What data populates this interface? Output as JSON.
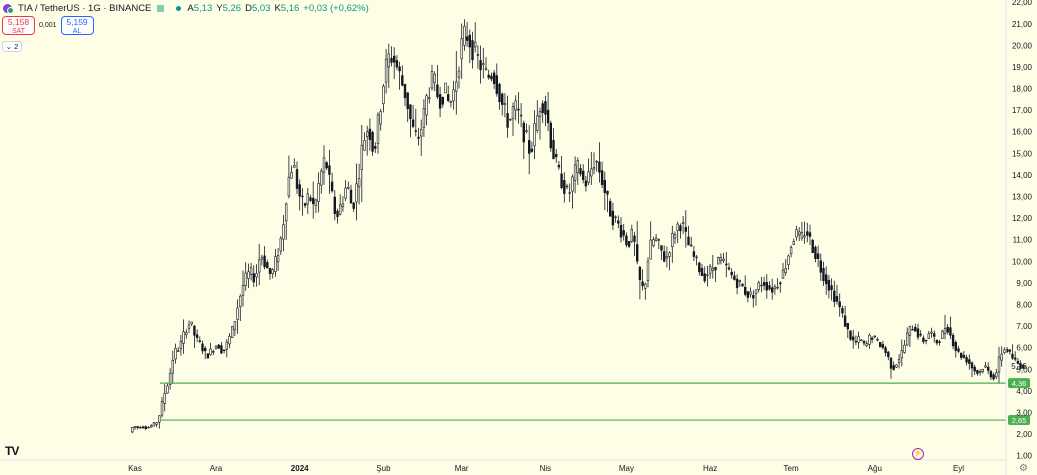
{
  "header": {
    "symbol": "TIA / TetherUS · 1G · BINANCE",
    "ohlc": {
      "open_label": "A",
      "open": "5,13",
      "high_label": "Y",
      "high": "5,26",
      "low_label": "D",
      "low": "5,03",
      "close_label": "K",
      "close": "5,16",
      "change": "+0,03 (+0,62%)"
    },
    "sell": {
      "price": "5,158",
      "label": "SAT"
    },
    "buy": {
      "price": "5,159",
      "label": "AL"
    },
    "spread": "0,001",
    "indicator_count": "2",
    "logo": "TV"
  },
  "colors": {
    "up": "#089981",
    "down": "#131722",
    "line": "#4caf50",
    "background": "#fefee6"
  },
  "chart_data": {
    "type": "candlestick",
    "title": "TIA / TetherUS · 1G · BINANCE",
    "x_ticks": [
      "Kas",
      "Ara",
      "2024",
      "Şub",
      "Mar",
      "Nis",
      "May",
      "Haz",
      "Tem",
      "Ağu",
      "Eyl"
    ],
    "y_ticks": [
      "22,00",
      "21,00",
      "20,00",
      "19,00",
      "18,00",
      "17,00",
      "16,00",
      "15,00",
      "14,00",
      "13,00",
      "12,00",
      "11,00",
      "10,00",
      "9,00",
      "8,00",
      "7,00",
      "6,00",
      "5,00",
      "4,00",
      "3,00",
      "2,00",
      "1,00"
    ],
    "ylim": [
      0.8,
      22.1
    ],
    "price_scale": "linear",
    "current_price": 5.16,
    "current_price_label": "5,16",
    "horizontal_levels": [
      {
        "value": 4.36,
        "label": "4,36"
      },
      {
        "value": 2.65,
        "label": "2,65"
      }
    ],
    "price_path": [
      [
        "2023-10-31",
        2.2
      ],
      [
        "2023-11-01",
        2.4
      ],
      [
        "2023-11-02",
        2.3
      ],
      [
        "2023-11-04",
        2.35
      ],
      [
        "2023-11-06",
        2.3
      ],
      [
        "2023-11-08",
        2.4
      ],
      [
        "2023-11-10",
        2.6
      ],
      [
        "2023-11-12",
        3.7
      ],
      [
        "2023-11-14",
        4.5
      ],
      [
        "2023-11-16",
        5.8
      ],
      [
        "2023-11-18",
        6.0
      ],
      [
        "2023-11-20",
        6.8
      ],
      [
        "2023-11-22",
        7.2
      ],
      [
        "2023-11-24",
        6.4
      ],
      [
        "2023-11-26",
        6.1
      ],
      [
        "2023-11-28",
        5.6
      ],
      [
        "2023-11-30",
        5.9
      ],
      [
        "2023-12-02",
        6.2
      ],
      [
        "2023-12-04",
        5.8
      ],
      [
        "2023-12-06",
        6.3
      ],
      [
        "2023-12-08",
        7.0
      ],
      [
        "2023-12-10",
        8.2
      ],
      [
        "2023-12-12",
        9.1
      ],
      [
        "2023-12-14",
        9.5
      ],
      [
        "2023-12-16",
        9.2
      ],
      [
        "2023-12-18",
        10.4
      ],
      [
        "2023-12-20",
        9.8
      ],
      [
        "2023-12-22",
        9.3
      ],
      [
        "2023-12-24",
        10.2
      ],
      [
        "2023-12-26",
        11.3
      ],
      [
        "2023-12-28",
        13.6
      ],
      [
        "2023-12-30",
        14.6
      ],
      [
        "2024-01-01",
        13.2
      ],
      [
        "2024-01-03",
        12.5
      ],
      [
        "2024-01-05",
        13.1
      ],
      [
        "2024-01-07",
        12.4
      ],
      [
        "2024-01-09",
        13.9
      ],
      [
        "2024-01-11",
        14.8
      ],
      [
        "2024-01-13",
        13.3
      ],
      [
        "2024-01-15",
        12.0
      ],
      [
        "2024-01-17",
        12.7
      ],
      [
        "2024-01-19",
        13.6
      ],
      [
        "2024-01-21",
        12.4
      ],
      [
        "2024-01-23",
        13.8
      ],
      [
        "2024-01-25",
        15.6
      ],
      [
        "2024-01-27",
        16.3
      ],
      [
        "2024-01-29",
        15.0
      ],
      [
        "2024-01-31",
        16.8
      ],
      [
        "2024-02-02",
        18.8
      ],
      [
        "2024-02-04",
        19.6
      ],
      [
        "2024-02-06",
        19.2
      ],
      [
        "2024-02-08",
        18.4
      ],
      [
        "2024-02-10",
        17.6
      ],
      [
        "2024-02-12",
        16.2
      ],
      [
        "2024-02-14",
        15.6
      ],
      [
        "2024-02-16",
        16.4
      ],
      [
        "2024-02-18",
        17.9
      ],
      [
        "2024-02-20",
        18.4
      ],
      [
        "2024-02-22",
        17.5
      ],
      [
        "2024-02-24",
        17.9
      ],
      [
        "2024-02-26",
        17.2
      ],
      [
        "2024-02-28",
        18.1
      ],
      [
        "2024-03-01",
        19.8
      ],
      [
        "2024-03-03",
        20.6
      ],
      [
        "2024-03-05",
        20.1
      ],
      [
        "2024-03-07",
        19.4
      ],
      [
        "2024-03-09",
        19.0
      ],
      [
        "2024-03-11",
        18.5
      ],
      [
        "2024-03-13",
        18.8
      ],
      [
        "2024-03-15",
        18.0
      ],
      [
        "2024-03-17",
        17.0
      ],
      [
        "2024-03-19",
        16.4
      ],
      [
        "2024-03-21",
        17.2
      ],
      [
        "2024-03-23",
        16.6
      ],
      [
        "2024-03-25",
        15.8
      ],
      [
        "2024-03-27",
        15.0
      ],
      [
        "2024-03-29",
        16.4
      ],
      [
        "2024-03-31",
        17.6
      ],
      [
        "2024-04-02",
        16.8
      ],
      [
        "2024-04-04",
        15.2
      ],
      [
        "2024-04-06",
        14.2
      ],
      [
        "2024-04-08",
        13.6
      ],
      [
        "2024-04-10",
        13.0
      ],
      [
        "2024-04-12",
        14.0
      ],
      [
        "2024-04-14",
        14.4
      ],
      [
        "2024-04-16",
        13.5
      ],
      [
        "2024-04-18",
        14.1
      ],
      [
        "2024-04-20",
        14.8
      ],
      [
        "2024-04-22",
        14.0
      ],
      [
        "2024-04-24",
        13.0
      ],
      [
        "2024-04-26",
        12.1
      ],
      [
        "2024-04-28",
        11.8
      ],
      [
        "2024-04-30",
        11.3
      ],
      [
        "2024-05-02",
        10.8
      ],
      [
        "2024-05-04",
        11.3
      ],
      [
        "2024-05-06",
        9.2
      ],
      [
        "2024-05-08",
        8.6
      ],
      [
        "2024-05-10",
        10.6
      ],
      [
        "2024-05-12",
        11.1
      ],
      [
        "2024-05-14",
        10.6
      ],
      [
        "2024-05-16",
        10.0
      ],
      [
        "2024-05-18",
        10.9
      ],
      [
        "2024-05-20",
        11.6
      ],
      [
        "2024-05-22",
        11.8
      ],
      [
        "2024-05-24",
        10.9
      ],
      [
        "2024-05-26",
        10.3
      ],
      [
        "2024-05-28",
        9.8
      ],
      [
        "2024-05-30",
        9.3
      ],
      [
        "2024-06-01",
        9.5
      ],
      [
        "2024-06-03",
        9.8
      ],
      [
        "2024-06-05",
        10.1
      ],
      [
        "2024-06-07",
        9.8
      ],
      [
        "2024-06-09",
        9.4
      ],
      [
        "2024-06-11",
        9.1
      ],
      [
        "2024-06-13",
        8.9
      ],
      [
        "2024-06-15",
        8.5
      ],
      [
        "2024-06-17",
        8.4
      ],
      [
        "2024-06-19",
        8.8
      ],
      [
        "2024-06-21",
        9.1
      ],
      [
        "2024-06-23",
        8.8
      ],
      [
        "2024-06-25",
        8.7
      ],
      [
        "2024-06-27",
        9.1
      ],
      [
        "2024-06-29",
        9.6
      ],
      [
        "2024-07-01",
        10.6
      ],
      [
        "2024-07-03",
        11.3
      ],
      [
        "2024-07-05",
        11.0
      ],
      [
        "2024-07-07",
        11.5
      ],
      [
        "2024-07-09",
        10.8
      ],
      [
        "2024-07-11",
        10.2
      ],
      [
        "2024-07-13",
        9.5
      ],
      [
        "2024-07-15",
        9.0
      ],
      [
        "2024-07-17",
        8.5
      ],
      [
        "2024-07-19",
        8.0
      ],
      [
        "2024-07-21",
        7.3
      ],
      [
        "2024-07-23",
        6.6
      ],
      [
        "2024-07-25",
        6.2
      ],
      [
        "2024-07-27",
        6.4
      ],
      [
        "2024-07-29",
        6.0
      ],
      [
        "2024-07-31",
        6.6
      ],
      [
        "2024-08-02",
        6.3
      ],
      [
        "2024-08-04",
        6.1
      ],
      [
        "2024-08-06",
        5.7
      ],
      [
        "2024-08-08",
        5.0
      ],
      [
        "2024-08-10",
        5.4
      ],
      [
        "2024-08-12",
        5.9
      ],
      [
        "2024-08-14",
        6.8
      ],
      [
        "2024-08-16",
        7.0
      ],
      [
        "2024-08-18",
        6.5
      ],
      [
        "2024-08-20",
        6.3
      ],
      [
        "2024-08-22",
        6.8
      ],
      [
        "2024-08-24",
        6.2
      ],
      [
        "2024-08-26",
        6.5
      ],
      [
        "2024-08-28",
        7.1
      ],
      [
        "2024-08-30",
        6.4
      ],
      [
        "2024-09-01",
        5.8
      ],
      [
        "2024-09-03",
        5.6
      ],
      [
        "2024-09-05",
        5.4
      ],
      [
        "2024-09-07",
        5.0
      ],
      [
        "2024-09-09",
        4.8
      ],
      [
        "2024-09-11",
        5.2
      ],
      [
        "2024-09-13",
        4.8
      ],
      [
        "2024-09-15",
        4.6
      ],
      [
        "2024-09-17",
        5.7
      ],
      [
        "2024-09-19",
        6.0
      ],
      [
        "2024-09-21",
        5.6
      ],
      [
        "2024-09-23",
        5.3
      ],
      [
        "2024-09-25",
        5.16
      ]
    ]
  }
}
